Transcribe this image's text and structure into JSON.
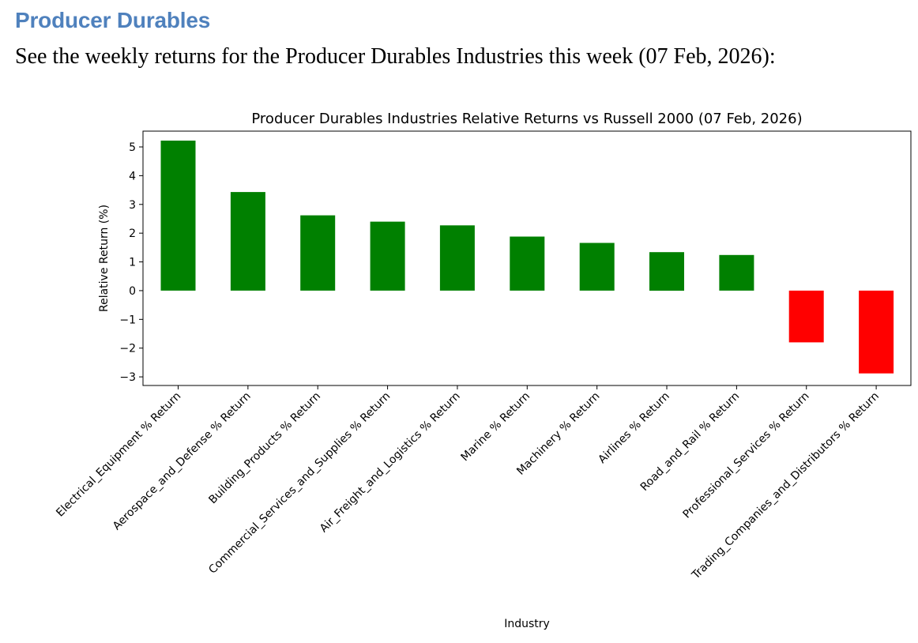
{
  "document": {
    "heading": "Producer Durables",
    "intro": "See the weekly returns for the Producer Durables Industries this week (07 Feb, 2026):"
  },
  "chart_data": {
    "type": "bar",
    "title": "Producer Durables Industries Relative Returns vs Russell 2000 (07 Feb, 2026)",
    "xlabel": "Industry",
    "ylabel": "Relative Return (%)",
    "categories": [
      "Electrical_Equipment % Return",
      "Aerospace_and_Defense % Return",
      "Building_Products % Return",
      "Commercial_Services_and_Supplies % Return",
      "Air_Freight_and_Logistics % Return",
      "Marine % Return",
      "Machinery % Return",
      "Airlines % Return",
      "Road_and_Rail % Return",
      "Professional_Services % Return",
      "Trading_Companies_and_Distributors % Return"
    ],
    "values": [
      5.22,
      3.43,
      2.62,
      2.4,
      2.27,
      1.88,
      1.66,
      1.34,
      1.24,
      -1.8,
      -2.88
    ],
    "ylim": [
      -3.3,
      5.55
    ],
    "yticks": [
      -3,
      -2,
      -1,
      0,
      1,
      2,
      3,
      4,
      5
    ],
    "ytick_labels": [
      "−3",
      "−2",
      "−1",
      "0",
      "1",
      "2",
      "3",
      "4",
      "5"
    ],
    "grid": false,
    "colors": {
      "positive": "#008000",
      "negative": "#ff0000"
    }
  }
}
